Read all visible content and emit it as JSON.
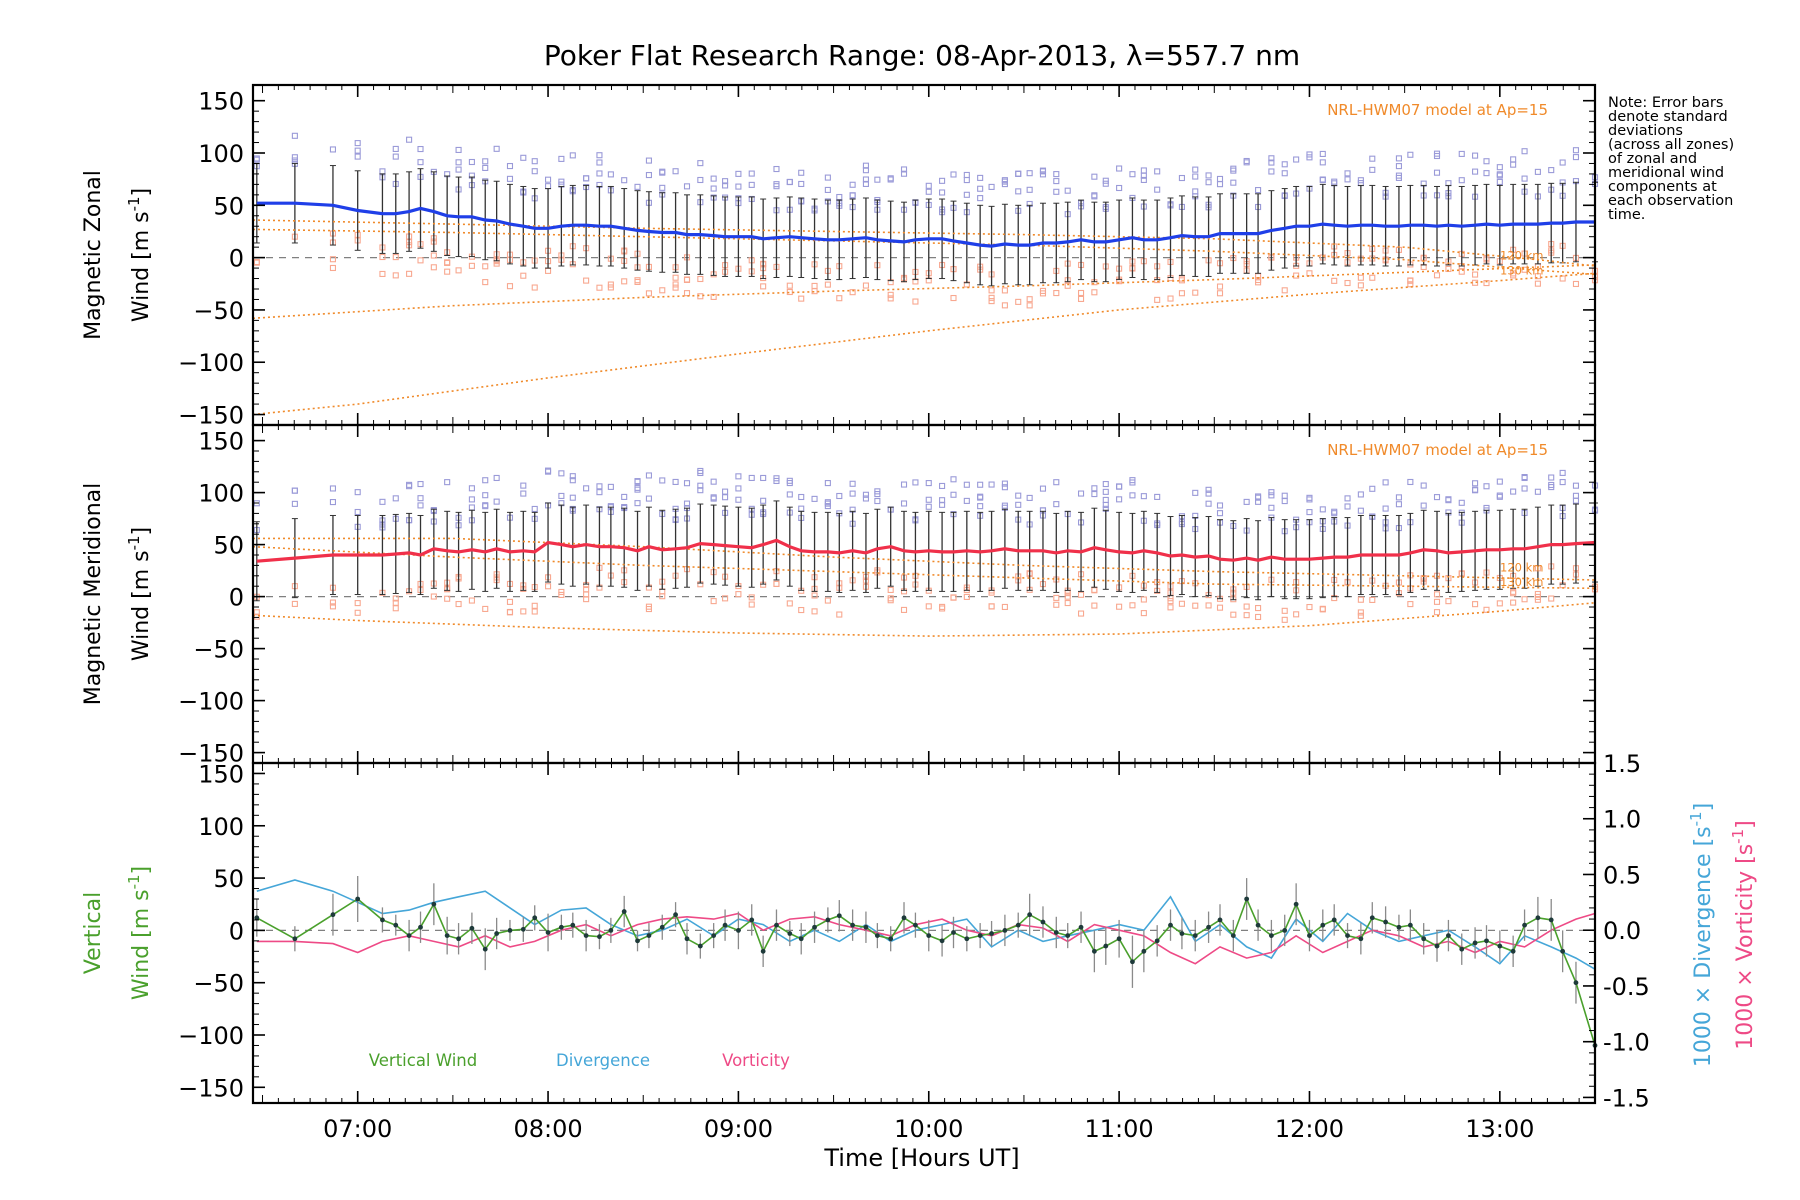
{
  "title": "Poker Flat Research Range: 08-Apr-2013, λ=557.7 nm",
  "note_lines": [
    "Note: Error bars",
    "denote standard",
    "deviations",
    "(across all zones)",
    "of zonal and",
    "meridional wind",
    "components at",
    "each observation",
    "time."
  ],
  "colors": {
    "zonal": "#1f3fe8",
    "meridional": "#f0304a",
    "model": "#f08a2a",
    "vertical": "#4aa02c",
    "divergence": "#45a6d8",
    "vorticity": "#ee4a86",
    "zone_blue": "#9a9ad8",
    "zone_salmon": "#f8a890"
  },
  "chart_data": [
    {
      "type": "line",
      "panel": "zonal",
      "ylabel_line1": "Magnetic Zonal",
      "ylabel_line2": "Wind [m s⁻¹]",
      "ylim": [
        -160,
        165
      ],
      "yticks": [
        150,
        100,
        50,
        0,
        -50,
        -100,
        -150
      ],
      "model_label": "NRL-HWM07 model at Ap=15",
      "model_alt_labels": [
        "120 km",
        "130 km"
      ],
      "x": [
        6.47,
        6.67,
        6.87,
        7.0,
        7.13,
        7.2,
        7.27,
        7.33,
        7.4,
        7.47,
        7.53,
        7.6,
        7.67,
        7.73,
        7.8,
        7.87,
        7.93,
        8.0,
        8.07,
        8.13,
        8.2,
        8.27,
        8.33,
        8.4,
        8.47,
        8.53,
        8.6,
        8.67,
        8.73,
        8.8,
        8.87,
        8.93,
        9.0,
        9.07,
        9.13,
        9.2,
        9.27,
        9.33,
        9.4,
        9.47,
        9.53,
        9.6,
        9.67,
        9.73,
        9.8,
        9.87,
        9.93,
        10.0,
        10.07,
        10.13,
        10.2,
        10.27,
        10.33,
        10.4,
        10.47,
        10.53,
        10.6,
        10.67,
        10.73,
        10.8,
        10.87,
        10.93,
        11.0,
        11.07,
        11.13,
        11.2,
        11.27,
        11.33,
        11.4,
        11.47,
        11.53,
        11.6,
        11.67,
        11.73,
        11.8,
        11.87,
        11.93,
        12.0,
        12.07,
        12.13,
        12.2,
        12.27,
        12.33,
        12.4,
        12.47,
        12.53,
        12.6,
        12.67,
        12.73,
        12.8,
        12.87,
        12.93,
        13.0,
        13.07,
        13.13,
        13.2,
        13.27,
        13.33,
        13.4,
        13.5
      ],
      "values": [
        52,
        52,
        50,
        45,
        42,
        42,
        44,
        47,
        44,
        40,
        39,
        39,
        36,
        35,
        32,
        30,
        28,
        28,
        30,
        31,
        31,
        30,
        30,
        28,
        26,
        25,
        24,
        24,
        22,
        22,
        21,
        20,
        20,
        20,
        18,
        19,
        20,
        19,
        18,
        17,
        17,
        18,
        19,
        17,
        16,
        15,
        17,
        18,
        18,
        16,
        14,
        12,
        11,
        13,
        12,
        12,
        14,
        14,
        15,
        17,
        15,
        15,
        17,
        19,
        17,
        17,
        19,
        21,
        20,
        20,
        23,
        23,
        23,
        23,
        26,
        28,
        30,
        30,
        32,
        31,
        30,
        31,
        31,
        30,
        30,
        31,
        31,
        30,
        31,
        30,
        31,
        32,
        31,
        32,
        32,
        32,
        33,
        33,
        34,
        34
      ],
      "model_curves": [
        {
          "name": "model-lower",
          "x": [
            6.45,
            7.5,
            8.5,
            9.5,
            10.5,
            11.5,
            12.5,
            13.5
          ],
          "values": [
            -58,
            -46,
            -38,
            -32,
            -27,
            -21,
            -14,
            -7
          ]
        },
        {
          "name": "model-bottom",
          "x": [
            6.45,
            7.0,
            8.0,
            9.0,
            10.0,
            11.0,
            12.0,
            13.0,
            13.5
          ],
          "values": [
            -150,
            -140,
            -115,
            -92,
            -70,
            -50,
            -35,
            -22,
            -15
          ]
        },
        {
          "name": "model-120km",
          "x": [
            6.45,
            7.5,
            8.5,
            9.5,
            10.5,
            11.5,
            12.5,
            13.2,
            13.5
          ],
          "values": [
            36,
            32,
            28,
            25,
            22,
            18,
            10,
            -2,
            -8
          ]
        },
        {
          "name": "model-130km",
          "x": [
            6.45,
            7.5,
            8.5,
            9.5,
            10.5,
            11.5,
            12.5,
            13.2,
            13.5
          ],
          "values": [
            27,
            24,
            20,
            16,
            12,
            6,
            -2,
            -12,
            -16
          ]
        }
      ]
    },
    {
      "type": "line",
      "panel": "meridional",
      "ylabel_line1": "Magnetic Meridional",
      "ylabel_line2": "Wind [m s⁻¹]",
      "ylim": [
        -160,
        165
      ],
      "yticks": [
        150,
        100,
        50,
        0,
        -50,
        -100,
        -150
      ],
      "model_label": "NRL-HWM07 model at Ap=15",
      "model_alt_labels": [
        "120 km",
        "130 km"
      ],
      "x": [
        6.47,
        6.67,
        6.87,
        7.0,
        7.13,
        7.2,
        7.27,
        7.33,
        7.4,
        7.47,
        7.53,
        7.6,
        7.67,
        7.73,
        7.8,
        7.87,
        7.93,
        8.0,
        8.07,
        8.13,
        8.2,
        8.27,
        8.33,
        8.4,
        8.47,
        8.53,
        8.6,
        8.67,
        8.73,
        8.8,
        8.87,
        8.93,
        9.0,
        9.07,
        9.13,
        9.2,
        9.27,
        9.33,
        9.4,
        9.47,
        9.53,
        9.6,
        9.67,
        9.73,
        9.8,
        9.87,
        9.93,
        10.0,
        10.07,
        10.13,
        10.2,
        10.27,
        10.33,
        10.4,
        10.47,
        10.53,
        10.6,
        10.67,
        10.73,
        10.8,
        10.87,
        10.93,
        11.0,
        11.07,
        11.13,
        11.2,
        11.27,
        11.33,
        11.4,
        11.47,
        11.53,
        11.6,
        11.67,
        11.73,
        11.8,
        11.87,
        11.93,
        12.0,
        12.07,
        12.13,
        12.2,
        12.27,
        12.33,
        12.4,
        12.47,
        12.53,
        12.6,
        12.67,
        12.73,
        12.8,
        12.87,
        12.93,
        13.0,
        13.07,
        13.13,
        13.2,
        13.27,
        13.33,
        13.4,
        13.5
      ],
      "values": [
        34,
        37,
        40,
        40,
        40,
        41,
        42,
        40,
        46,
        44,
        43,
        45,
        43,
        46,
        43,
        44,
        43,
        52,
        50,
        48,
        50,
        48,
        48,
        47,
        44,
        48,
        45,
        46,
        47,
        51,
        50,
        49,
        48,
        47,
        50,
        54,
        48,
        44,
        43,
        43,
        42,
        44,
        42,
        46,
        48,
        44,
        43,
        44,
        43,
        43,
        44,
        43,
        44,
        46,
        44,
        44,
        44,
        42,
        44,
        43,
        47,
        45,
        43,
        42,
        44,
        42,
        39,
        40,
        38,
        39,
        36,
        35,
        37,
        35,
        38,
        36,
        36,
        36,
        37,
        38,
        38,
        40,
        40,
        40,
        40,
        42,
        45,
        44,
        42,
        43,
        44,
        45,
        45,
        46,
        46,
        48,
        50,
        50,
        51,
        52
      ],
      "model_curves": [
        {
          "name": "model-upper",
          "x": [
            6.45,
            7.5,
            8.5,
            9.5,
            10.5,
            11.5,
            12.5,
            13.5
          ],
          "values": [
            56,
            56,
            48,
            38,
            30,
            24,
            20,
            16
          ]
        },
        {
          "name": "model-mid",
          "x": [
            6.45,
            7.5,
            8.5,
            9.5,
            10.5,
            11.5,
            12.5,
            13.5
          ],
          "values": [
            48,
            38,
            30,
            24,
            18,
            12,
            10,
            8
          ]
        },
        {
          "name": "model-bottom",
          "x": [
            6.45,
            7.0,
            8.0,
            9.0,
            10.0,
            11.0,
            12.0,
            13.0,
            13.5
          ],
          "values": [
            -18,
            -23,
            -30,
            -35,
            -38,
            -36,
            -28,
            -14,
            -6
          ]
        }
      ]
    },
    {
      "type": "line",
      "panel": "vertical",
      "ylabel_line1": "Vertical",
      "ylabel_line2": "Wind [m s⁻¹]",
      "right_label_divergence": "1000 × Divergence [s⁻¹]",
      "right_label_vorticity": "1000 × Vorticity [s⁻¹]",
      "ylim": [
        -165,
        160
      ],
      "yticks": [
        150,
        100,
        50,
        0,
        -50,
        -100,
        -150
      ],
      "ylim_right": [
        -1.55,
        1.5
      ],
      "yticks_right": [
        1.5,
        1.0,
        0.5,
        0.0,
        -0.5,
        -1.0,
        -1.5
      ],
      "xlabel": "Time [Hours UT]",
      "xtick_labels": [
        "07:00",
        "08:00",
        "09:00",
        "10:00",
        "11:00",
        "12:00",
        "13:00"
      ],
      "xtick_values": [
        7,
        8,
        9,
        10,
        11,
        12,
        13
      ],
      "xlim": [
        6.45,
        13.5
      ],
      "legend": [
        "Vertical Wind",
        "Divergence",
        "Vorticity"
      ],
      "series": [
        {
          "name": "Vertical Wind",
          "x": [
            6.47,
            6.67,
            6.87,
            7.0,
            7.13,
            7.2,
            7.27,
            7.33,
            7.4,
            7.47,
            7.53,
            7.6,
            7.67,
            7.73,
            7.8,
            7.87,
            7.93,
            8.0,
            8.07,
            8.13,
            8.2,
            8.27,
            8.33,
            8.4,
            8.47,
            8.53,
            8.6,
            8.67,
            8.73,
            8.8,
            8.87,
            8.93,
            9.0,
            9.07,
            9.13,
            9.2,
            9.27,
            9.33,
            9.4,
            9.47,
            9.53,
            9.6,
            9.67,
            9.73,
            9.8,
            9.87,
            9.93,
            10.0,
            10.07,
            10.13,
            10.2,
            10.27,
            10.33,
            10.4,
            10.47,
            10.53,
            10.6,
            10.67,
            10.73,
            10.8,
            10.87,
            10.93,
            11.0,
            11.07,
            11.13,
            11.2,
            11.27,
            11.33,
            11.4,
            11.47,
            11.53,
            11.6,
            11.67,
            11.73,
            11.8,
            11.87,
            11.93,
            12.0,
            12.07,
            12.13,
            12.2,
            12.27,
            12.33,
            12.4,
            12.47,
            12.53,
            12.6,
            12.67,
            12.73,
            12.8,
            12.87,
            12.93,
            13.0,
            13.07,
            13.13,
            13.2,
            13.27,
            13.33,
            13.4,
            13.5
          ],
          "values": [
            12,
            -8,
            15,
            30,
            10,
            5,
            -5,
            3,
            25,
            -5,
            -8,
            2,
            -18,
            -3,
            0,
            1,
            12,
            -2,
            3,
            5,
            -5,
            -6,
            0,
            18,
            -10,
            -5,
            3,
            15,
            -8,
            -15,
            -5,
            5,
            0,
            10,
            -20,
            5,
            -3,
            -8,
            3,
            10,
            14,
            5,
            3,
            -5,
            -8,
            12,
            5,
            -5,
            -10,
            -2,
            -8,
            -5,
            -3,
            0,
            5,
            15,
            8,
            -2,
            -5,
            3,
            -20,
            -15,
            -8,
            -30,
            -20,
            -10,
            5,
            -3,
            -5,
            3,
            10,
            -5,
            30,
            5,
            -5,
            0,
            25,
            -5,
            5,
            10,
            -5,
            -8,
            12,
            8,
            3,
            5,
            -8,
            -15,
            -5,
            -18,
            -12,
            -10,
            -15,
            -20,
            5,
            12,
            10,
            -20,
            -50,
            -110
          ],
          "errors": [
            18,
            12,
            20,
            22,
            12,
            10,
            15,
            15,
            20,
            18,
            15,
            15,
            20,
            15,
            10,
            12,
            12,
            18,
            12,
            12,
            15,
            12,
            12,
            15,
            10,
            12,
            12,
            12,
            15,
            12,
            12,
            15,
            18,
            15,
            15,
            15,
            12,
            15,
            15,
            12,
            15,
            15,
            15,
            12,
            12,
            15,
            12,
            15,
            15,
            15,
            12,
            12,
            12,
            15,
            12,
            20,
            15,
            15,
            12,
            15,
            20,
            18,
            18,
            25,
            20,
            15,
            15,
            15,
            15,
            15,
            15,
            15,
            20,
            15,
            15,
            15,
            20,
            15,
            15,
            15,
            12,
            15,
            15,
            15,
            12,
            15,
            15,
            15,
            15,
            15,
            15,
            15,
            15,
            15,
            15,
            20,
            20,
            20,
            20,
            20
          ]
        },
        {
          "name": "Divergence",
          "x": [
            6.47,
            6.67,
            6.87,
            7.0,
            7.13,
            7.27,
            7.4,
            7.53,
            7.67,
            7.8,
            7.93,
            8.07,
            8.2,
            8.33,
            8.47,
            8.6,
            8.73,
            8.87,
            9.0,
            9.13,
            9.27,
            9.4,
            9.53,
            9.67,
            9.8,
            9.93,
            10.07,
            10.2,
            10.33,
            10.47,
            10.6,
            10.73,
            10.87,
            11.0,
            11.13,
            11.27,
            11.4,
            11.53,
            11.67,
            11.8,
            11.93,
            12.07,
            12.2,
            12.33,
            12.47,
            12.6,
            12.73,
            12.87,
            13.0,
            13.13,
            13.27,
            13.4,
            13.5
          ],
          "values": [
            0.35,
            0.45,
            0.35,
            0.25,
            0.15,
            0.18,
            0.25,
            0.3,
            0.35,
            0.2,
            0.05,
            0.18,
            0.2,
            0.05,
            -0.05,
            0.0,
            0.1,
            -0.05,
            0.1,
            0.05,
            -0.1,
            0.0,
            -0.1,
            0.05,
            -0.1,
            0.0,
            0.05,
            0.1,
            -0.15,
            0.0,
            -0.1,
            -0.05,
            0.0,
            0.05,
            0.0,
            0.3,
            -0.1,
            0.05,
            -0.15,
            -0.25,
            0.1,
            -0.1,
            0.15,
            0.0,
            -0.1,
            -0.05,
            0.0,
            -0.15,
            -0.3,
            -0.05,
            -0.15,
            -0.25,
            -0.35
          ]
        },
        {
          "name": "Vorticity",
          "x": [
            6.47,
            6.67,
            6.87,
            7.0,
            7.13,
            7.27,
            7.4,
            7.53,
            7.67,
            7.8,
            7.93,
            8.07,
            8.2,
            8.33,
            8.47,
            8.6,
            8.73,
            8.87,
            9.0,
            9.13,
            9.27,
            9.4,
            9.53,
            9.67,
            9.8,
            9.93,
            10.07,
            10.2,
            10.33,
            10.47,
            10.6,
            10.73,
            10.87,
            11.0,
            11.13,
            11.27,
            11.4,
            11.53,
            11.67,
            11.8,
            11.93,
            12.07,
            12.2,
            12.33,
            12.47,
            12.6,
            12.73,
            12.87,
            13.0,
            13.13,
            13.27,
            13.4,
            13.5
          ],
          "values": [
            -0.1,
            -0.1,
            -0.12,
            -0.2,
            -0.1,
            -0.05,
            -0.1,
            -0.15,
            -0.05,
            -0.15,
            -0.1,
            0.0,
            0.05,
            -0.05,
            0.05,
            0.1,
            0.12,
            0.1,
            0.15,
            0.0,
            0.1,
            0.12,
            0.05,
            0.0,
            -0.05,
            0.05,
            0.1,
            0.0,
            -0.05,
            0.05,
            0.02,
            -0.1,
            0.05,
            0.0,
            -0.05,
            -0.2,
            -0.3,
            -0.15,
            -0.25,
            -0.2,
            -0.05,
            -0.2,
            -0.1,
            0.0,
            -0.05,
            -0.15,
            -0.1,
            -0.2,
            -0.1,
            -0.15,
            0.0,
            0.1,
            0.15
          ]
        }
      ]
    }
  ]
}
